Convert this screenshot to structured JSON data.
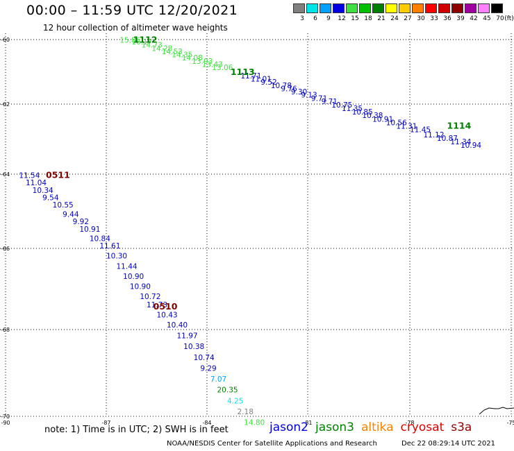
{
  "header": {
    "title": "00:00 – 11:59 UTC 12/20/2021",
    "subtitle": "12 hour collection of altimeter wave heights"
  },
  "colorbar": {
    "unit": "(ft)",
    "bins": [
      {
        "label": "3",
        "color": "#808080"
      },
      {
        "label": "6",
        "color": "#00e5e5"
      },
      {
        "label": "9",
        "color": "#00a0ff"
      },
      {
        "label": "12",
        "color": "#0000e0"
      },
      {
        "label": "15",
        "color": "#40e040"
      },
      {
        "label": "18",
        "color": "#00c000"
      },
      {
        "label": "21",
        "color": "#008000"
      },
      {
        "label": "24",
        "color": "#ffff00"
      },
      {
        "label": "27",
        "color": "#ffcc00"
      },
      {
        "label": "30",
        "color": "#ff8000"
      },
      {
        "label": "33",
        "color": "#ff0000"
      },
      {
        "label": "36",
        "color": "#d00000"
      },
      {
        "label": "39",
        "color": "#900000"
      },
      {
        "label": "42",
        "color": "#a000a0"
      },
      {
        "label": "45",
        "color": "#ff80ff"
      },
      {
        "label": "70",
        "color": "#000000"
      }
    ]
  },
  "map": {
    "lon_range": [
      -90,
      -75
    ],
    "lat_range": [
      -70,
      -60
    ],
    "lon_ticks": [
      {
        "value": -90,
        "label": "-90"
      },
      {
        "value": -87,
        "label": "-87"
      },
      {
        "value": -84,
        "label": "-84"
      },
      {
        "value": -81,
        "label": "-81"
      },
      {
        "value": -78,
        "label": "-78"
      },
      {
        "value": -75,
        "label": "-75"
      }
    ],
    "lat_ticks": [
      {
        "value": -60,
        "label": "-60"
      },
      {
        "value": -62,
        "label": "-62"
      },
      {
        "value": -64,
        "label": "-64"
      },
      {
        "value": -66,
        "label": "-66"
      },
      {
        "value": -68,
        "label": "-68"
      },
      {
        "value": -70,
        "label": "-70"
      }
    ],
    "grid": "dotted",
    "pass_labels": [
      {
        "text": "1112",
        "lon": -86.2,
        "lat": -60.1,
        "color": "#008000"
      },
      {
        "text": "1113",
        "lon": -83.3,
        "lat": -61.1,
        "color": "#008000"
      },
      {
        "text": "1114",
        "lon": -76.9,
        "lat": -62.7,
        "color": "#008000"
      },
      {
        "text": "0511",
        "lon": -88.8,
        "lat": -64.1,
        "color": "#800000"
      },
      {
        "text": "0510",
        "lon": -85.6,
        "lat": -67.5,
        "color": "#800000"
      }
    ],
    "observations": [
      {
        "text": "15.86",
        "lon": -86.6,
        "lat": -60.1,
        "color": "#40e040"
      },
      {
        "text": "16.17",
        "lon": -86.25,
        "lat": -60.15,
        "color": "#40e040"
      },
      {
        "text": "14.73",
        "lon": -85.95,
        "lat": -60.25,
        "color": "#40e040"
      },
      {
        "text": "14.28",
        "lon": -85.65,
        "lat": -60.35,
        "color": "#40e040"
      },
      {
        "text": "14.53",
        "lon": -85.35,
        "lat": -60.45,
        "color": "#40e040"
      },
      {
        "text": "14.35",
        "lon": -85.05,
        "lat": -60.55,
        "color": "#40e040"
      },
      {
        "text": "14.08",
        "lon": -84.75,
        "lat": -60.65,
        "color": "#40e040"
      },
      {
        "text": "13.93",
        "lon": -84.45,
        "lat": -60.75,
        "color": "#40e040"
      },
      {
        "text": "13.43",
        "lon": -84.15,
        "lat": -60.85,
        "color": "#40e040"
      },
      {
        "text": "13.06",
        "lon": -83.85,
        "lat": -60.95,
        "color": "#40e040"
      },
      {
        "text": "11.71",
        "lon": -83.0,
        "lat": -61.2,
        "color": "#0000c0"
      },
      {
        "text": "11.01",
        "lon": -82.7,
        "lat": -61.3,
        "color": "#0000c0"
      },
      {
        "text": "9.52",
        "lon": -82.4,
        "lat": -61.4,
        "color": "#0000c0"
      },
      {
        "text": "10.78",
        "lon": -82.1,
        "lat": -61.5,
        "color": "#0000c0"
      },
      {
        "text": "9.76",
        "lon": -81.8,
        "lat": -61.6,
        "color": "#0000c0"
      },
      {
        "text": "9.30",
        "lon": -81.5,
        "lat": -61.7,
        "color": "#0000c0"
      },
      {
        "text": "9.13",
        "lon": -81.2,
        "lat": -61.8,
        "color": "#0000c0"
      },
      {
        "text": "9.71",
        "lon": -80.9,
        "lat": -61.9,
        "color": "#0000c0"
      },
      {
        "text": "9.71",
        "lon": -80.6,
        "lat": -62.0,
        "color": "#0000c0"
      },
      {
        "text": "10.75",
        "lon": -80.3,
        "lat": -62.1,
        "color": "#0000c0"
      },
      {
        "text": "11.35",
        "lon": -80.0,
        "lat": -62.2,
        "color": "#0000c0"
      },
      {
        "text": "10.85",
        "lon": -79.7,
        "lat": -62.3,
        "color": "#0000c0"
      },
      {
        "text": "10.38",
        "lon": -79.4,
        "lat": -62.4,
        "color": "#0000c0"
      },
      {
        "text": "10.91",
        "lon": -79.1,
        "lat": -62.5,
        "color": "#0000c0"
      },
      {
        "text": "10.56",
        "lon": -78.7,
        "lat": -62.6,
        "color": "#0000c0"
      },
      {
        "text": "11.31",
        "lon": -78.4,
        "lat": -62.7,
        "color": "#0000c0"
      },
      {
        "text": "11.45",
        "lon": -78.0,
        "lat": -62.8,
        "color": "#0000c0"
      },
      {
        "text": "11.12",
        "lon": -77.6,
        "lat": -62.95,
        "color": "#0000c0"
      },
      {
        "text": "10.87",
        "lon": -77.2,
        "lat": -63.05,
        "color": "#0000c0"
      },
      {
        "text": "11.34",
        "lon": -76.8,
        "lat": -63.15,
        "color": "#0000c0"
      },
      {
        "text": "10.94",
        "lon": -76.5,
        "lat": -63.25,
        "color": "#0000c0"
      },
      {
        "text": "11.54",
        "lon": -89.6,
        "lat": -64.1,
        "color": "#0000c0"
      },
      {
        "text": "11.04",
        "lon": -89.4,
        "lat": -64.3,
        "color": "#0000c0"
      },
      {
        "text": "10.34",
        "lon": -89.2,
        "lat": -64.5,
        "color": "#0000c0"
      },
      {
        "text": "9.54",
        "lon": -88.9,
        "lat": -64.7,
        "color": "#0000c0"
      },
      {
        "text": "10.55",
        "lon": -88.6,
        "lat": -64.9,
        "color": "#0000c0"
      },
      {
        "text": "9.44",
        "lon": -88.3,
        "lat": -65.15,
        "color": "#0000c0"
      },
      {
        "text": "9.92",
        "lon": -88.0,
        "lat": -65.35,
        "color": "#0000c0"
      },
      {
        "text": "10.91",
        "lon": -87.8,
        "lat": -65.55,
        "color": "#0000c0"
      },
      {
        "text": "10.84",
        "lon": -87.5,
        "lat": -65.8,
        "color": "#0000c0"
      },
      {
        "text": "11.61",
        "lon": -87.2,
        "lat": -66.0,
        "color": "#0000c0"
      },
      {
        "text": "10.30",
        "lon": -87.0,
        "lat": -66.25,
        "color": "#0000c0"
      },
      {
        "text": "11.44",
        "lon": -86.7,
        "lat": -66.5,
        "color": "#0000c0"
      },
      {
        "text": "10.90",
        "lon": -86.5,
        "lat": -66.75,
        "color": "#0000c0"
      },
      {
        "text": "10.90",
        "lon": -86.3,
        "lat": -67.0,
        "color": "#0000c0"
      },
      {
        "text": "10.72",
        "lon": -86.0,
        "lat": -67.25,
        "color": "#0000c0"
      },
      {
        "text": "11.73",
        "lon": -85.8,
        "lat": -67.45,
        "color": "#0000c0"
      },
      {
        "text": "10.43",
        "lon": -85.5,
        "lat": -67.7,
        "color": "#0000c0"
      },
      {
        "text": "10.40",
        "lon": -85.2,
        "lat": -67.95,
        "color": "#0000c0"
      },
      {
        "text": "11.97",
        "lon": -84.9,
        "lat": -68.2,
        "color": "#0000c0"
      },
      {
        "text": "10.38",
        "lon": -84.7,
        "lat": -68.45,
        "color": "#0000c0"
      },
      {
        "text": "10.74",
        "lon": -84.4,
        "lat": -68.7,
        "color": "#0000c0"
      },
      {
        "text": "9.29",
        "lon": -84.2,
        "lat": -68.95,
        "color": "#0000c0"
      },
      {
        "text": "7.07",
        "lon": -83.9,
        "lat": -69.2,
        "color": "#00a0ff"
      },
      {
        "text": "20.35",
        "lon": -83.7,
        "lat": -69.45,
        "color": "#008000"
      },
      {
        "text": "4.25",
        "lon": -83.4,
        "lat": -69.7,
        "color": "#00e5e5"
      },
      {
        "text": "2.18",
        "lon": -83.1,
        "lat": -69.95,
        "color": "#808080"
      },
      {
        "text": "14.80",
        "lon": -82.9,
        "lat": -70.2,
        "color": "#40e040"
      }
    ]
  },
  "footer": {
    "note": "note: 1) Time is in UTC; 2) SWH is in feet",
    "legend": [
      {
        "text": "jason2",
        "color": "#0000e0"
      },
      {
        "text": "jason3",
        "color": "#008000"
      },
      {
        "text": "altika",
        "color": "#ff8000"
      },
      {
        "text": "cryosat",
        "color": "#e00000"
      },
      {
        "text": "s3a",
        "color": "#900000"
      }
    ],
    "credit": "NOAA/NESDIS Center for Satellite Applications and Research",
    "timestamp": "Dec 22 08:29:14 UTC 2021"
  }
}
